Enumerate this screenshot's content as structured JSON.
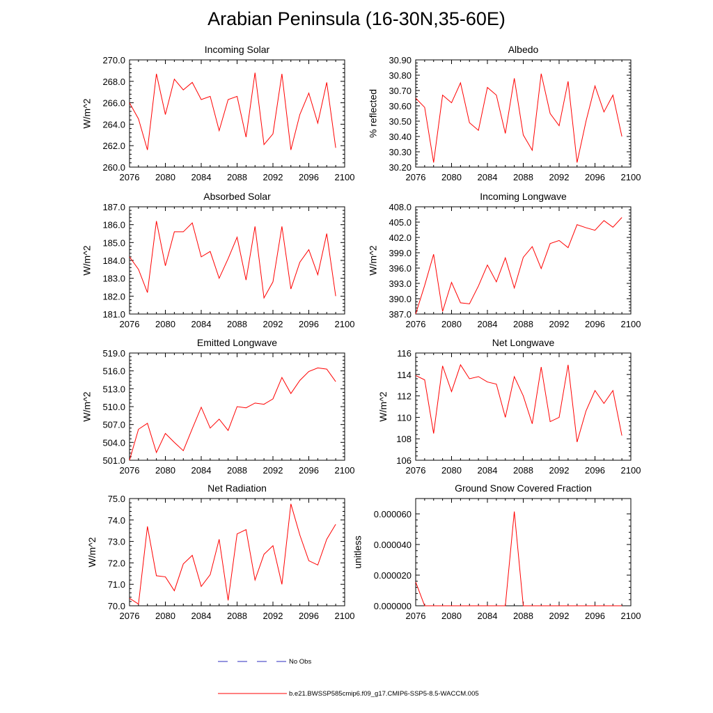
{
  "title": "Arabian Peninsula (16-30N,35-60E)",
  "colors": {
    "model": "#ff0000",
    "obs": "#2b2bbf",
    "axis": "#000000"
  },
  "legend": {
    "obs_label": "No Obs",
    "model_label": "b.e21.BWSSP585cmip6.f09_g17.CMIP6-SSP5-8.5-WACCM.005"
  },
  "chart_data": [
    {
      "type": "line",
      "title": "Incoming Solar",
      "ylabel": "W/m^2",
      "xlim": [
        2076,
        2100
      ],
      "ylim": [
        260,
        270
      ],
      "xticks": [
        "2076",
        "2080",
        "2084",
        "2088",
        "2092",
        "2096",
        "2100"
      ],
      "yticks": [
        "260.0",
        "262.0",
        "264.0",
        "266.0",
        "268.0",
        "270.0"
      ],
      "x": [
        2076,
        2077,
        2078,
        2079,
        2080,
        2081,
        2082,
        2083,
        2084,
        2085,
        2086,
        2087,
        2088,
        2089,
        2090,
        2091,
        2092,
        2093,
        2094,
        2095,
        2096,
        2097,
        2098,
        2099
      ],
      "series": [
        {
          "name": "b.e21.BWSSP585cmip6.f09_g17.CMIP6-SSP5-8.5-WACCM.005",
          "values": [
            266.0,
            264.5,
            261.6,
            268.7,
            264.9,
            268.2,
            267.2,
            267.9,
            266.3,
            266.6,
            263.4,
            266.3,
            266.6,
            262.8,
            268.8,
            262.1,
            263.1,
            268.7,
            261.6,
            264.9,
            266.9,
            264.1,
            267.9,
            261.8
          ]
        }
      ]
    },
    {
      "type": "line",
      "title": "Albedo",
      "ylabel": "% reflected",
      "xlim": [
        2076,
        2100
      ],
      "ylim": [
        30.2,
        30.9
      ],
      "xticks": [
        "2076",
        "2080",
        "2084",
        "2088",
        "2092",
        "2096",
        "2100"
      ],
      "yticks": [
        "30.20",
        "30.30",
        "30.40",
        "30.50",
        "30.60",
        "30.70",
        "30.80",
        "30.90"
      ],
      "x": [
        2076,
        2077,
        2078,
        2079,
        2080,
        2081,
        2082,
        2083,
        2084,
        2085,
        2086,
        2087,
        2088,
        2089,
        2090,
        2091,
        2092,
        2093,
        2094,
        2095,
        2096,
        2097,
        2098,
        2099
      ],
      "series": [
        {
          "name": "b.e21.BWSSP585cmip6.f09_g17.CMIP6-SSP5-8.5-WACCM.005",
          "values": [
            30.65,
            30.59,
            30.23,
            30.67,
            30.62,
            30.75,
            30.49,
            30.44,
            30.72,
            30.67,
            30.42,
            30.78,
            30.41,
            30.31,
            30.81,
            30.55,
            30.47,
            30.76,
            30.23,
            30.5,
            30.73,
            30.56,
            30.67,
            30.4
          ]
        }
      ]
    },
    {
      "type": "line",
      "title": "Absorbed Solar",
      "ylabel": "W/m^2",
      "xlim": [
        2076,
        2100
      ],
      "ylim": [
        181,
        187
      ],
      "xticks": [
        "2076",
        "2080",
        "2084",
        "2088",
        "2092",
        "2096",
        "2100"
      ],
      "yticks": [
        "181.0",
        "182.0",
        "183.0",
        "184.0",
        "185.0",
        "186.0",
        "187.0"
      ],
      "x": [
        2076,
        2077,
        2078,
        2079,
        2080,
        2081,
        2082,
        2083,
        2084,
        2085,
        2086,
        2087,
        2088,
        2089,
        2090,
        2091,
        2092,
        2093,
        2094,
        2095,
        2096,
        2097,
        2098,
        2099
      ],
      "series": [
        {
          "name": "b.e21.BWSSP585cmip6.f09_g17.CMIP6-SSP5-8.5-WACCM.005",
          "values": [
            184.2,
            183.5,
            182.2,
            186.2,
            183.7,
            185.6,
            185.6,
            186.1,
            184.2,
            184.5,
            183.0,
            184.1,
            185.3,
            182.9,
            185.9,
            181.9,
            182.8,
            185.9,
            182.4,
            183.9,
            184.6,
            183.2,
            185.5,
            182.0
          ]
        }
      ]
    },
    {
      "type": "line",
      "title": "Incoming Longwave",
      "ylabel": "W/m^2",
      "xlim": [
        2076,
        2100
      ],
      "ylim": [
        387,
        408
      ],
      "xticks": [
        "2076",
        "2080",
        "2084",
        "2088",
        "2092",
        "2096",
        "2100"
      ],
      "yticks": [
        "387.0",
        "390.0",
        "393.0",
        "396.0",
        "399.0",
        "402.0",
        "405.0",
        "408.0"
      ],
      "x": [
        2076,
        2077,
        2078,
        2079,
        2080,
        2081,
        2082,
        2083,
        2084,
        2085,
        2086,
        2087,
        2088,
        2089,
        2090,
        2091,
        2092,
        2093,
        2094,
        2095,
        2096,
        2097,
        2098,
        2099
      ],
      "series": [
        {
          "name": "b.e21.BWSSP585cmip6.f09_g17.CMIP6-SSP5-8.5-WACCM.005",
          "values": [
            387.0,
            392.6,
            398.7,
            387.5,
            393.2,
            389.2,
            389.0,
            392.5,
            396.6,
            393.3,
            398.0,
            392.1,
            398.1,
            400.2,
            395.9,
            400.8,
            401.4,
            400.0,
            404.5,
            403.9,
            403.4,
            405.3,
            404.0,
            405.9
          ]
        }
      ]
    },
    {
      "type": "line",
      "title": "Emitted Longwave",
      "ylabel": "W/m^2",
      "xlim": [
        2076,
        2100
      ],
      "ylim": [
        501,
        519
      ],
      "xticks": [
        "2076",
        "2080",
        "2084",
        "2088",
        "2092",
        "2096",
        "2100"
      ],
      "yticks": [
        "501.0",
        "504.0",
        "507.0",
        "510.0",
        "513.0",
        "516.0",
        "519.0"
      ],
      "x": [
        2076,
        2077,
        2078,
        2079,
        2080,
        2081,
        2082,
        2083,
        2084,
        2085,
        2086,
        2087,
        2088,
        2089,
        2090,
        2091,
        2092,
        2093,
        2094,
        2095,
        2096,
        2097,
        2098,
        2099
      ],
      "series": [
        {
          "name": "b.e21.BWSSP585cmip6.f09_g17.CMIP6-SSP5-8.5-WACCM.005",
          "values": [
            501.0,
            506.2,
            507.2,
            502.3,
            505.5,
            504.0,
            502.6,
            506.3,
            509.9,
            506.4,
            507.9,
            506.0,
            510.0,
            509.8,
            510.6,
            510.4,
            511.3,
            514.9,
            512.2,
            514.4,
            515.9,
            516.5,
            516.3,
            514.2
          ]
        }
      ]
    },
    {
      "type": "line",
      "title": "Net Longwave",
      "ylabel": "W/m^2",
      "xlim": [
        2076,
        2100
      ],
      "ylim": [
        106,
        116
      ],
      "xticks": [
        "2076",
        "2080",
        "2084",
        "2088",
        "2092",
        "2096",
        "2100"
      ],
      "yticks": [
        "106",
        "108",
        "110",
        "112",
        "114",
        "116"
      ],
      "x": [
        2076,
        2077,
        2078,
        2079,
        2080,
        2081,
        2082,
        2083,
        2084,
        2085,
        2086,
        2087,
        2088,
        2089,
        2090,
        2091,
        2092,
        2093,
        2094,
        2095,
        2096,
        2097,
        2098,
        2099
      ],
      "series": [
        {
          "name": "b.e21.BWSSP585cmip6.f09_g17.CMIP6-SSP5-8.5-WACCM.005",
          "values": [
            113.9,
            113.5,
            108.5,
            114.8,
            112.4,
            114.9,
            113.6,
            113.8,
            113.3,
            113.1,
            110.0,
            113.8,
            112.0,
            109.4,
            114.7,
            109.6,
            110.0,
            114.9,
            107.7,
            110.6,
            112.5,
            111.3,
            112.5,
            108.3
          ]
        }
      ]
    },
    {
      "type": "line",
      "title": "Net Radiation",
      "ylabel": "W/m^2",
      "xlim": [
        2076,
        2100
      ],
      "ylim": [
        70,
        75
      ],
      "xticks": [
        "2076",
        "2080",
        "2084",
        "2088",
        "2092",
        "2096",
        "2100"
      ],
      "yticks": [
        "70.0",
        "71.0",
        "72.0",
        "73.0",
        "74.0",
        "75.0"
      ],
      "x": [
        2076,
        2077,
        2078,
        2079,
        2080,
        2081,
        2082,
        2083,
        2084,
        2085,
        2086,
        2087,
        2088,
        2089,
        2090,
        2091,
        2092,
        2093,
        2094,
        2095,
        2096,
        2097,
        2098,
        2099
      ],
      "series": [
        {
          "name": "b.e21.BWSSP585cmip6.f09_g17.CMIP6-SSP5-8.5-WACCM.005",
          "values": [
            70.35,
            70.08,
            73.7,
            71.4,
            71.35,
            70.7,
            71.95,
            72.35,
            70.9,
            71.45,
            73.1,
            70.25,
            73.35,
            73.55,
            71.2,
            72.4,
            72.8,
            71.0,
            74.75,
            73.3,
            72.1,
            71.9,
            73.1,
            73.8
          ]
        }
      ]
    },
    {
      "type": "line",
      "title": "Ground Snow Covered Fraction",
      "ylabel": "unitless",
      "xlim": [
        2076,
        2100
      ],
      "ylim": [
        0,
        7e-05
      ],
      "xticks": [
        "2076",
        "2080",
        "2084",
        "2088",
        "2092",
        "2096",
        "2100"
      ],
      "yticks": [
        "0.000000",
        "0.000020",
        "0.000040",
        "0.000060"
      ],
      "ytick_values": [
        0,
        2e-05,
        4e-05,
        6e-05
      ],
      "x": [
        2076,
        2077,
        2078,
        2079,
        2080,
        2081,
        2082,
        2083,
        2084,
        2085,
        2086,
        2087,
        2088,
        2089,
        2090,
        2091,
        2092,
        2093,
        2094,
        2095,
        2096,
        2097,
        2098,
        2099
      ],
      "series": [
        {
          "name": "b.e21.BWSSP585cmip6.f09_g17.CMIP6-SSP5-8.5-WACCM.005",
          "values": [
            1.55e-05,
            0,
            0,
            0,
            0,
            0,
            0,
            0,
            0,
            0,
            0,
            6.15e-05,
            0,
            0,
            0,
            0,
            0,
            0,
            0,
            0,
            0,
            0,
            0,
            0
          ]
        }
      ]
    }
  ]
}
